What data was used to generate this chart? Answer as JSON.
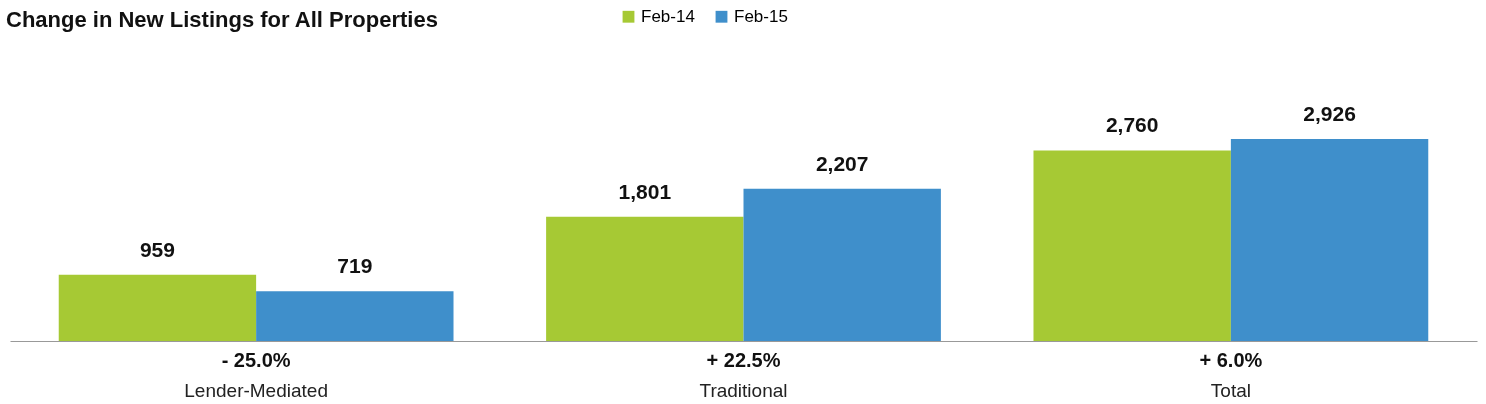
{
  "chart_data": {
    "type": "bar",
    "title": "Change in New Listings for All Properties",
    "categories": [
      "Lender-Mediated",
      "Traditional",
      "Total"
    ],
    "series": [
      {
        "name": "Feb-14",
        "color": "#a6c934",
        "values": [
          959,
          1801,
          2760
        ],
        "value_labels": [
          "959",
          "1,801",
          "2,760"
        ]
      },
      {
        "name": "Feb-15",
        "color": "#3f8fcb",
        "values": [
          719,
          2207,
          2926
        ],
        "value_labels": [
          "719",
          "2,207",
          "2,926"
        ]
      }
    ],
    "legend": "top",
    "grid": false,
    "annotations": [
      "- 25.0%",
      "+ 22.5%",
      "+ 6.0%"
    ]
  }
}
